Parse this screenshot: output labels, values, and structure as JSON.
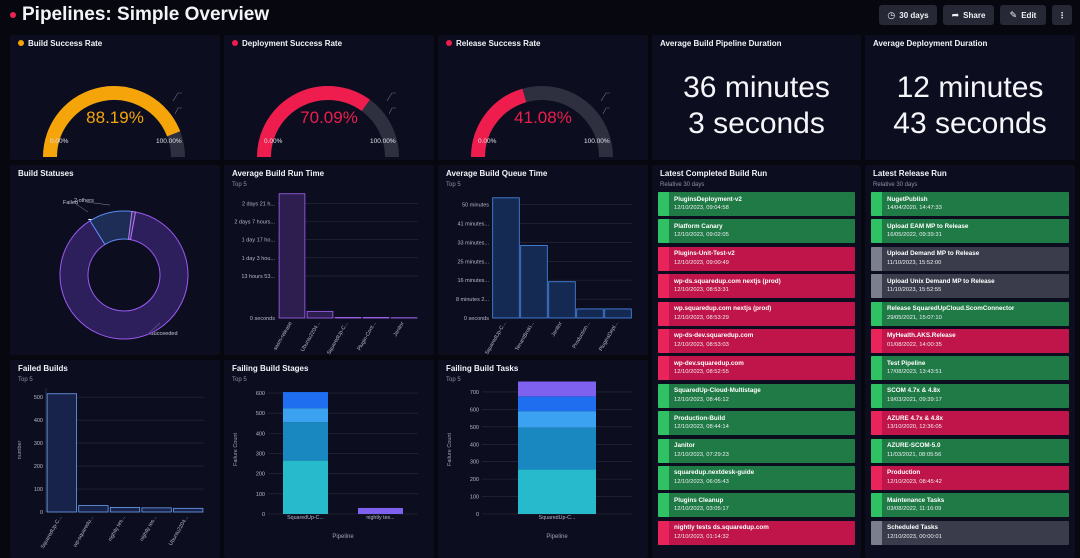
{
  "header": {
    "title": "Pipelines: Simple Overview",
    "btn_timeframe": "30 days",
    "btn_share": "Share",
    "btn_edit": "Edit",
    "btn_more": "⋮"
  },
  "gauges": [
    {
      "title": "Build Success Rate",
      "value": "88.19%",
      "pct": 88.19,
      "min": "0.00%",
      "max": "100.00%",
      "color": "#f5a50a",
      "dot": "#f5a50a"
    },
    {
      "title": "Deployment Success Rate",
      "value": "70.09%",
      "pct": 70.09,
      "min": "0.00%",
      "max": "100.00%",
      "color": "#ee1d4e",
      "dot": "#ee1d4e"
    },
    {
      "title": "Release Success Rate",
      "value": "41.08%",
      "pct": 41.08,
      "min": "0.00%",
      "max": "100.00%",
      "color": "#ee1d4e",
      "dot": "#ee1d4e"
    }
  ],
  "durations": [
    {
      "title": "Average Build Pipeline Duration",
      "line1": "36 minutes",
      "line2": "3 seconds"
    },
    {
      "title": "Average Deployment Duration",
      "line1": "12 minutes",
      "line2": "43 seconds"
    }
  ],
  "colors": {
    "success": "#1f7a45",
    "success_stripe": "#2ec264",
    "failed": "#c0154a",
    "failed_stripe": "#e8245b",
    "other": "#3a3c4c",
    "other_stripe": "#7b7e8c"
  },
  "build_statuses": {
    "title": "Build Statuses",
    "chart_data": {
      "type": "pie",
      "segments": [
        {
          "label": "Succeeded",
          "value": 5816,
          "color": "#2c1f5c",
          "stroke": "#9b59f2"
        },
        {
          "label": "Failed",
          "value": 718,
          "color": "#1d2d55",
          "stroke": "#5b8cf5"
        },
        {
          "label": "2 others",
          "value": 57,
          "color": "#3a2860",
          "stroke": "#b57bf7"
        }
      ]
    },
    "labels": {
      "succeeded": "Succeeded",
      "failed": "Failed",
      "others": "2 others",
      "succeeded_val": "5816",
      "failed_val": "718"
    }
  },
  "avg_run_time": {
    "title": "Average Build Run Time",
    "sub": "Top 5",
    "chart_data": {
      "type": "bar",
      "categories": [
        "sasm-release",
        "Ubuntu2204...",
        "SquaredUp-C...",
        "Plugin-Cont...",
        "Janitor"
      ],
      "values": [
        225,
        12,
        1,
        1,
        0.5
      ],
      "ylim": [
        0,
        230
      ],
      "ytick_labels": [
        "2 days 21 h...",
        "2 days 7 hours...",
        "1 day 17 ho...",
        "1 day 3 hou...",
        "13 hours 53...",
        "0 seconds"
      ],
      "ytick_values": [
        207,
        175,
        142,
        109,
        76,
        0
      ]
    }
  },
  "avg_queue_time": {
    "title": "Average Build Queue Time",
    "sub": "Top 5",
    "chart_data": {
      "type": "bar",
      "categories": [
        "SquaredUp-C...",
        "TenantBroki...",
        "Janitor",
        "Production...",
        "PluginsDepl..."
      ],
      "values": [
        53,
        32,
        16,
        4,
        4
      ],
      "ylim": [
        0,
        56
      ],
      "ytick_labels": [
        "50 minutes",
        "41 minutes...",
        "33 minutes...",
        "25 minutes...",
        "16 minutes...",
        "8 minutes 2...",
        "0 seconds"
      ],
      "ytick_values": [
        50,
        41.7,
        33.3,
        25,
        16.7,
        8.3,
        0
      ]
    }
  },
  "latest_build": {
    "title": "Latest Completed Build Run",
    "sub": "Relative 30 days",
    "items": [
      {
        "name": "PluginsDeployment-v2",
        "date": "12/10/2023, 09:04:58",
        "status": "success"
      },
      {
        "name": "Platform Canary",
        "date": "12/10/2023, 09:02:05",
        "status": "success"
      },
      {
        "name": "Plugins-Unit-Test-v2",
        "date": "12/10/2023, 09:00:49",
        "status": "failed"
      },
      {
        "name": "wp-ds.squaredup.com nextjs (prod)",
        "date": "12/10/2023, 08:53:31",
        "status": "failed"
      },
      {
        "name": "wp.squaredup.com nextjs (prod)",
        "date": "12/10/2023, 08:53:29",
        "status": "failed"
      },
      {
        "name": "wp-ds-dev.squaredup.com",
        "date": "12/10/2023, 08:53:03",
        "status": "failed"
      },
      {
        "name": "wp-dev.squaredup.com",
        "date": "12/10/2023, 08:52:55",
        "status": "failed"
      },
      {
        "name": "SquaredUp-Cloud-Multistage",
        "date": "12/10/2023, 08:46:12",
        "status": "success"
      },
      {
        "name": "Production-Build",
        "date": "12/10/2023, 08:44:14",
        "status": "success"
      },
      {
        "name": "Janitor",
        "date": "12/10/2023, 07:29:23",
        "status": "success"
      },
      {
        "name": "squaredup.nextdesk-guide",
        "date": "12/10/2023, 06:05:43",
        "status": "success"
      },
      {
        "name": "Plugins Cleanup",
        "date": "12/10/2023, 03:05:17",
        "status": "success"
      },
      {
        "name": "nightly tests ds.squaredup.com",
        "date": "12/10/2023, 01:14:32",
        "status": "failed"
      }
    ]
  },
  "latest_release": {
    "title": "Latest Release Run",
    "sub": "Relative 30 days",
    "items": [
      {
        "name": "NugetPublish",
        "date": "14/04/2020, 14:47:33",
        "status": "success"
      },
      {
        "name": "Upload EAM MP to Release",
        "date": "16/05/2022, 09:39:31",
        "status": "success"
      },
      {
        "name": "Upload Demand MP to Release",
        "date": "11/10/2023, 15:52:00",
        "status": "other"
      },
      {
        "name": "Upload Unix Demand MP to Release",
        "date": "11/10/2023, 15:52:55",
        "status": "other"
      },
      {
        "name": "Release SquaredUpCloud.ScomConnector",
        "date": "29/05/2021, 15:07:10",
        "status": "success"
      },
      {
        "name": "MyHealth.AKS.Release",
        "date": "01/08/2022, 14:00:35",
        "status": "failed"
      },
      {
        "name": "Test Pipeline",
        "date": "17/08/2023, 13:43:51",
        "status": "success"
      },
      {
        "name": "SCOM 4.7x & 4.8x",
        "date": "19/03/2021, 09:39:17",
        "status": "success"
      },
      {
        "name": "AZURE 4.7x & 4.8x",
        "date": "13/10/2020, 12:36:05",
        "status": "failed"
      },
      {
        "name": "AZURE-SCOM-5.0",
        "date": "11/03/2021, 08:05:56",
        "status": "success"
      },
      {
        "name": "Production",
        "date": "12/10/2023, 08:45:42",
        "status": "failed"
      },
      {
        "name": "Maintenance Tasks",
        "date": "03/08/2022, 11:16:09",
        "status": "success"
      },
      {
        "name": "Scheduled Tasks",
        "date": "12/10/2023, 00:00:01",
        "status": "other"
      }
    ]
  },
  "failed_builds": {
    "title": "Failed Builds",
    "sub": "Top 5",
    "ylabel": "number",
    "chart_data": {
      "type": "bar",
      "categories": [
        "SquaredUp-C...",
        "wp-squaredu...",
        "nightly tes...",
        "nightly tes...",
        "Ubuntu2204..."
      ],
      "values": [
        515,
        28,
        20,
        18,
        16
      ],
      "ylim": [
        0,
        540
      ],
      "ytick_labels": [
        "500",
        "400",
        "300",
        "200",
        "100",
        "0"
      ],
      "ytick_values": [
        500,
        400,
        300,
        200,
        100,
        0
      ]
    }
  },
  "failing_stages": {
    "title": "Failing Build Stages",
    "sub": "Top 5",
    "ylabel": "Failure Count",
    "xlabel": "Pipeline",
    "chart_data": {
      "type": "bar",
      "categories": [
        "SquaredUp-C...",
        "nightly tes..."
      ],
      "ylim": [
        0,
        640
      ],
      "ytick_labels": [
        "600",
        "500",
        "400",
        "300",
        "200",
        "100",
        "0"
      ],
      "ytick_values": [
        600,
        500,
        400,
        300,
        200,
        100,
        0
      ],
      "stacks": [
        [
          265,
          190,
          70,
          80
        ],
        [
          30
        ]
      ],
      "stack_colors": [
        "#27b9cc",
        "#1a88c0",
        "#3aa2f0",
        "#1f6ef0",
        "#7f61ef"
      ]
    }
  },
  "failing_tasks": {
    "title": "Failing Build Tasks",
    "sub": "Top 5",
    "ylabel": "Failure Count",
    "xlabel": "Pipeline",
    "chart_data": {
      "type": "bar",
      "categories": [
        "SquaredUp-C..."
      ],
      "ylim": [
        0,
        740
      ],
      "ytick_labels": [
        "700",
        "600",
        "500",
        "400",
        "300",
        "200",
        "100",
        "0"
      ],
      "ytick_values": [
        700,
        600,
        500,
        400,
        300,
        200,
        100,
        0
      ],
      "stacks": [
        [
          255,
          240,
          95,
          85,
          85
        ]
      ],
      "stack_colors": [
        "#27b9cc",
        "#1a88c0",
        "#3aa2f0",
        "#1f6ef0",
        "#7f61ef"
      ]
    }
  }
}
